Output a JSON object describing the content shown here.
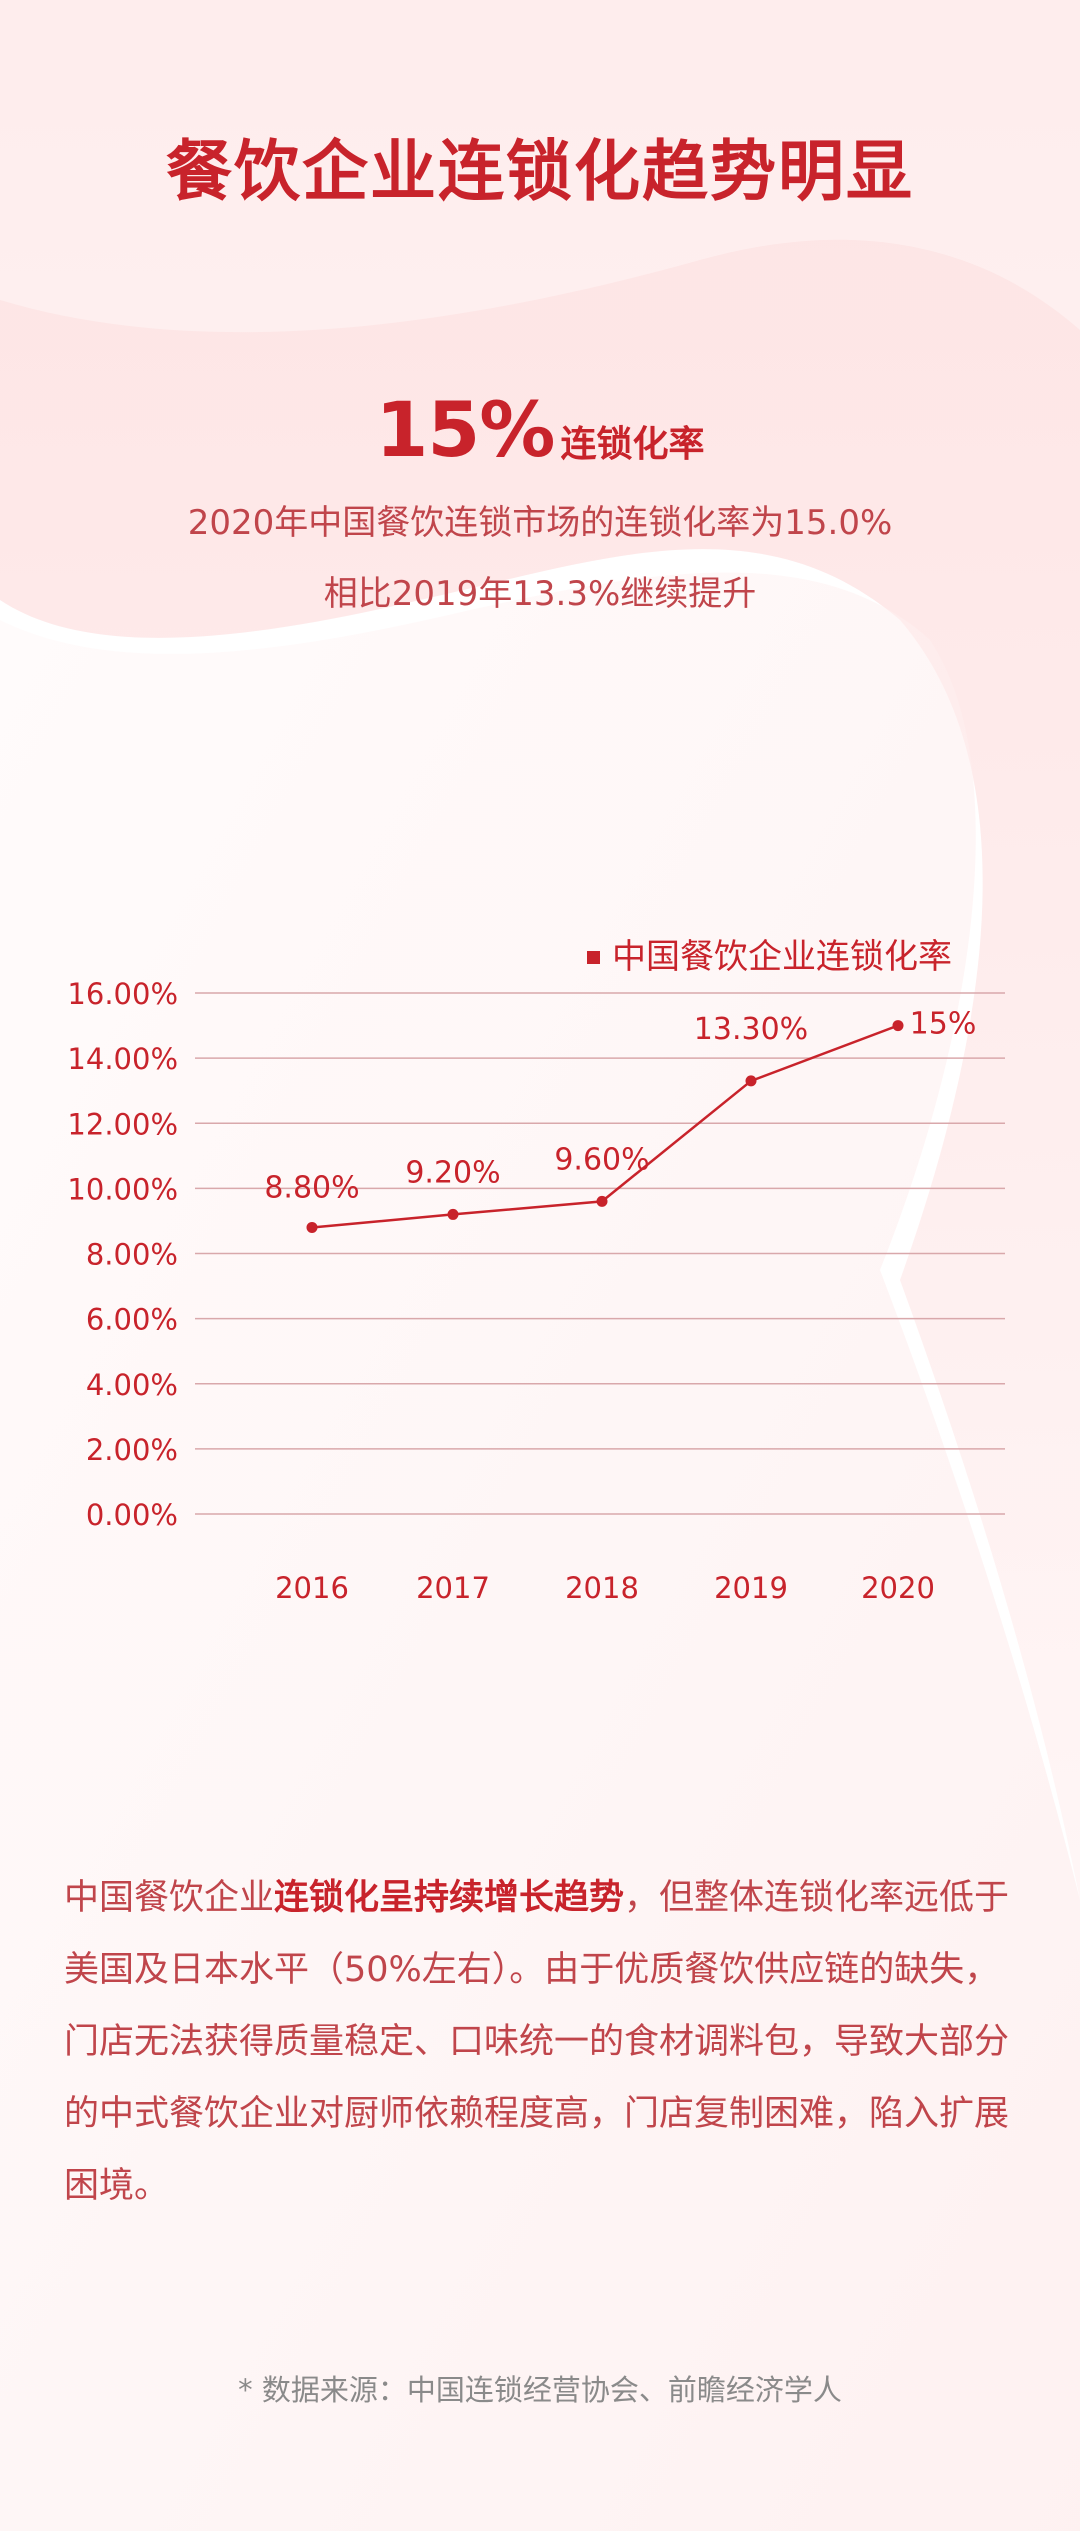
{
  "title": "餐饮企业连锁化趋势明显",
  "headline": {
    "value": "15%",
    "label": "连锁化率",
    "line1": "2020年中国餐饮连锁市场的连锁化率为15.0%",
    "line2": "相比2019年13.3%继续提升"
  },
  "chart_data": {
    "type": "line",
    "categories": [
      "2016",
      "2017",
      "2018",
      "2019",
      "2020"
    ],
    "series": [
      {
        "name": "中国餐饮企业连锁化率",
        "values": [
          8.8,
          9.2,
          9.6,
          13.3,
          15.0
        ]
      }
    ],
    "data_labels": [
      "8.80%",
      "9.20%",
      "9.60%",
      "13.30%",
      "15%"
    ],
    "y_ticks": [
      "0.00%",
      "2.00%",
      "4.00%",
      "6.00%",
      "8.00%",
      "10.00%",
      "12.00%",
      "14.00%",
      "16.00%"
    ],
    "ylim": [
      0,
      16
    ],
    "grid": true,
    "legend_position": "top-right",
    "line_color": "#c8232b"
  },
  "body": {
    "pre": "中国餐饮企业",
    "highlight": "连锁化呈持续增长趋势",
    "post": "，但整体连锁化率远低于美国及日本水平（50%左右）。由于优质餐饮供应链的缺失，门店无法获得质量稳定、口味统一的食材调料包，导致大部分的中式餐饮企业对厨师依赖程度高，门店复制困难，陷入扩展困境。"
  },
  "source": "* 数据来源：中国连锁经营协会、前瞻经济学人"
}
